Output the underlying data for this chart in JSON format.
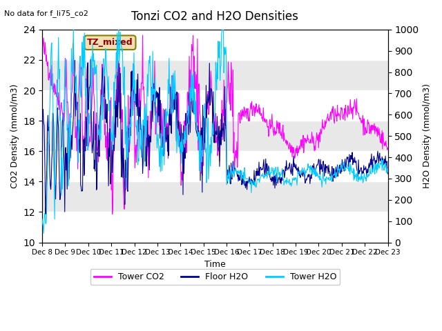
{
  "title": "Tonzi CO2 and H2O Densities",
  "xlabel": "Time",
  "ylabel_left": "CO2 Density (mmol/m3)",
  "ylabel_right": "H2O Density (mmol/m3)",
  "ylim_left": [
    10,
    24
  ],
  "ylim_right": [
    0,
    1000
  ],
  "annotation_text": "No data for f_li75_co2",
  "box_label": "TZ_mixed",
  "legend_labels": [
    "Tower CO2",
    "Floor H2O",
    "Tower H2O"
  ],
  "line_colors": [
    "#FF00FF",
    "#00008B",
    "#00CCFF"
  ],
  "background_color": "#FFFFFF",
  "plot_bg_color": "#E8E8E8",
  "grid_color": "#FFFFFF",
  "xtick_labels": [
    "Dec 8",
    "Dec 9",
    "Dec 10",
    "Dec 11",
    "Dec 12",
    "Dec 13",
    "Dec 14",
    "Dec 15",
    "Dec 16",
    "Dec 17",
    "Dec 18",
    "Dec 19",
    "Dec 20",
    "Dec 21",
    "Dec 22",
    "Dec 23"
  ],
  "n_days": 16,
  "figsize": [
    6.4,
    4.8
  ],
  "dpi": 100
}
